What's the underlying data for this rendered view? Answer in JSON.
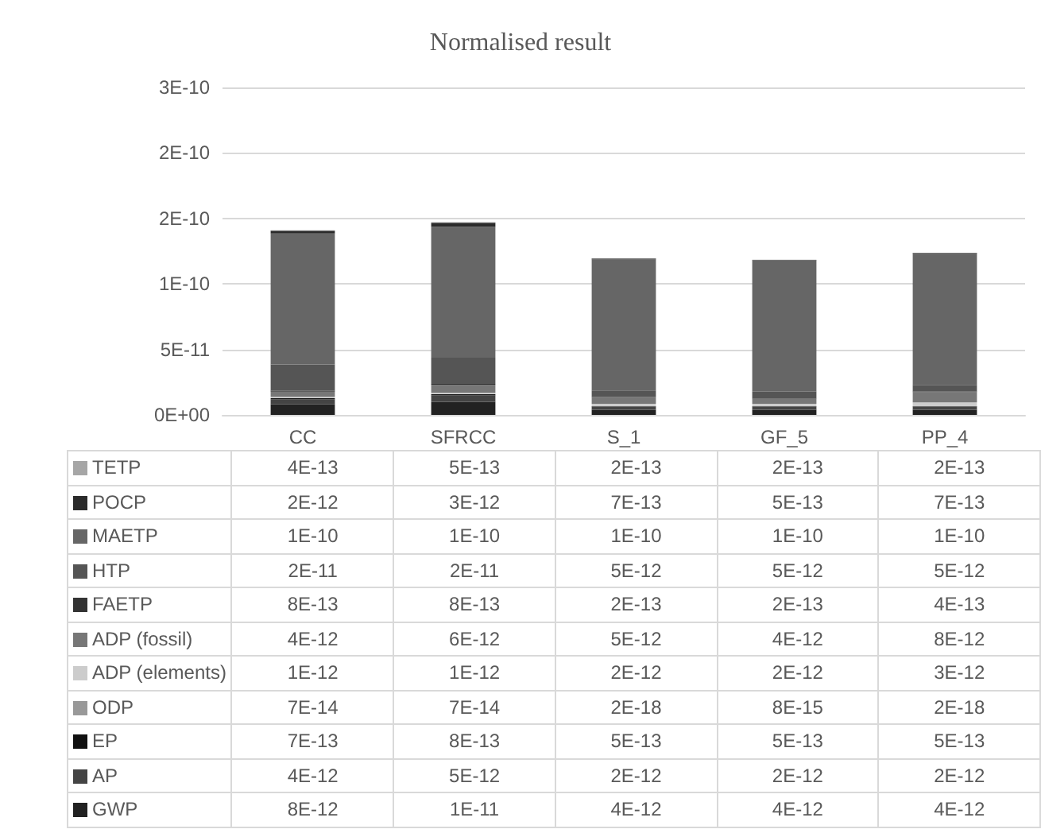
{
  "chart_data": {
    "type": "bar",
    "title": "Normalised result",
    "stacked": true,
    "categories": [
      "CC",
      "SFRCC",
      "S_1",
      "GF_5",
      "PP_4"
    ],
    "series": [
      {
        "name": "GWP",
        "color": "#222222",
        "values": [
          8e-12,
          1e-11,
          4e-12,
          4e-12,
          4e-12
        ],
        "value_labels": [
          "8E-12",
          "1E-11",
          "4E-12",
          "4E-12",
          "4E-12"
        ]
      },
      {
        "name": "AP",
        "color": "#444444",
        "values": [
          4e-12,
          5e-12,
          2e-12,
          2e-12,
          2e-12
        ],
        "value_labels": [
          "4E-12",
          "5E-12",
          "2E-12",
          "2E-12",
          "2E-12"
        ]
      },
      {
        "name": "EP",
        "color": "#111111",
        "values": [
          7e-13,
          8e-13,
          5e-13,
          5e-13,
          5e-13
        ],
        "value_labels": [
          "7E-13",
          "8E-13",
          "5E-13",
          "5E-13",
          "5E-13"
        ]
      },
      {
        "name": "ODP",
        "color": "#999999",
        "values": [
          7e-14,
          7e-14,
          2e-18,
          8e-15,
          2e-18
        ],
        "value_labels": [
          "7E-14",
          "7E-14",
          "2E-18",
          "8E-15",
          "2E-18"
        ]
      },
      {
        "name": "ADP (elements)",
        "color": "#cccccc",
        "values": [
          1e-12,
          1e-12,
          2e-12,
          2e-12,
          3e-12
        ],
        "value_labels": [
          "1E-12",
          "1E-12",
          "2E-12",
          "2E-12",
          "3E-12"
        ]
      },
      {
        "name": "ADP (fossil)",
        "color": "#777777",
        "values": [
          4e-12,
          6e-12,
          5e-12,
          4e-12,
          8e-12
        ],
        "value_labels": [
          "4E-12",
          "6E-12",
          "5E-12",
          "4E-12",
          "8E-12"
        ]
      },
      {
        "name": "FAETP",
        "color": "#333333",
        "values": [
          8e-13,
          8e-13,
          2e-13,
          2e-13,
          4e-13
        ],
        "value_labels": [
          "8E-13",
          "8E-13",
          "2E-13",
          "2E-13",
          "4E-13"
        ]
      },
      {
        "name": "HTP",
        "color": "#555555",
        "values": [
          2e-11,
          2e-11,
          5e-12,
          5e-12,
          5e-12
        ],
        "value_labels": [
          "2E-11",
          "2E-11",
          "5E-12",
          "5E-12",
          "5E-12"
        ]
      },
      {
        "name": "MAETP",
        "color": "#666666",
        "values": [
          1e-10,
          1e-10,
          1e-10,
          1e-10,
          1e-10
        ],
        "value_labels": [
          "1E-10",
          "1E-10",
          "1E-10",
          "1E-10",
          "1E-10"
        ]
      },
      {
        "name": "POCP",
        "color": "#2b2b2b",
        "values": [
          2e-12,
          3e-12,
          7e-13,
          5e-13,
          7e-13
        ],
        "value_labels": [
          "2E-12",
          "3E-12",
          "7E-13",
          "5E-13",
          "7E-13"
        ]
      },
      {
        "name": "TETP",
        "color": "#a6a6a6",
        "values": [
          4e-13,
          5e-13,
          2e-13,
          2e-13,
          2e-13
        ],
        "value_labels": [
          "4E-13",
          "5E-13",
          "2E-13",
          "2E-13",
          "2E-13"
        ]
      }
    ],
    "ylim": [
      0,
      2.5e-10
    ],
    "yticks": [
      {
        "value": 0,
        "label": "0E+00"
      },
      {
        "value": 5e-11,
        "label": "5E-11"
      },
      {
        "value": 1e-10,
        "label": "1E-10"
      },
      {
        "value": 1.5e-10,
        "label": "2E-10"
      },
      {
        "value": 2e-10,
        "label": "2E-10"
      },
      {
        "value": 2.5e-10,
        "label": "3E-10"
      }
    ],
    "grid": "y",
    "legend": "bottom"
  }
}
